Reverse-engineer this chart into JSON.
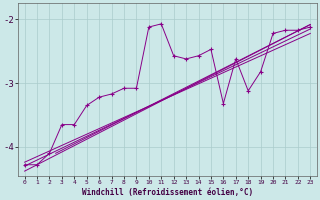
{
  "xlabel": "Windchill (Refroidissement éolien,°C)",
  "bg_color": "#cce8e8",
  "grid_color": "#aacccc",
  "line_color": "#880088",
  "xlim": [
    -0.5,
    23.5
  ],
  "ylim": [
    -4.45,
    -1.75
  ],
  "yticks": [
    -4,
    -3,
    -2
  ],
  "xticks": [
    0,
    1,
    2,
    3,
    4,
    5,
    6,
    7,
    8,
    9,
    10,
    11,
    12,
    13,
    14,
    15,
    16,
    17,
    18,
    19,
    20,
    21,
    22,
    23
  ],
  "main_x": [
    0,
    1,
    2,
    3,
    4,
    5,
    6,
    7,
    8,
    9,
    10,
    11,
    12,
    13,
    14,
    15,
    16,
    17,
    18,
    19,
    20,
    21,
    22,
    23
  ],
  "main_y": [
    -4.28,
    -4.28,
    -4.1,
    -3.65,
    -3.65,
    -3.35,
    -3.22,
    -3.17,
    -3.08,
    -3.08,
    -2.12,
    -2.07,
    -2.57,
    -2.62,
    -2.57,
    -2.47,
    -3.32,
    -2.62,
    -3.12,
    -2.82,
    -2.22,
    -2.17,
    -2.17,
    -2.12
  ],
  "line1_x": [
    0,
    23
  ],
  "line1_y": [
    -4.38,
    -2.08
  ],
  "line2_x": [
    0,
    23
  ],
  "line2_y": [
    -4.3,
    -2.15
  ],
  "line3_x": [
    0,
    23
  ],
  "line3_y": [
    -4.24,
    -2.22
  ],
  "line4_x": [
    2.5,
    23
  ],
  "line4_y": [
    -4.1,
    -2.08
  ]
}
